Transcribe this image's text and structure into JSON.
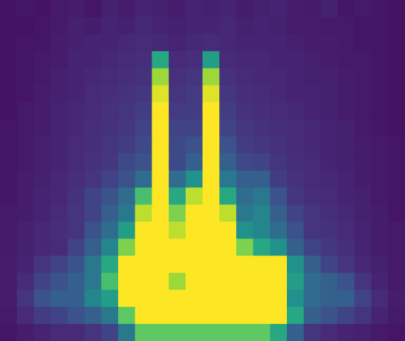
{
  "chart_data": {
    "type": "heatmap",
    "color": "viridis",
    "color_range": [
      0,
      1
    ],
    "tick_labels": false,
    "cells": [
      [
        0.05,
        0.06,
        0.05,
        0.07,
        0.08,
        0.06,
        0.09,
        0.08,
        0.1,
        0.09,
        0.08,
        0.1,
        0.09,
        0.1,
        0.08,
        0.09,
        0.1,
        0.08,
        0.07,
        0.09,
        0.06,
        0.07,
        0.06,
        0.05
      ],
      [
        0.05,
        0.05,
        0.06,
        0.07,
        0.09,
        0.08,
        0.1,
        0.09,
        0.11,
        0.1,
        0.09,
        0.1,
        0.1,
        0.11,
        0.09,
        0.1,
        0.09,
        0.08,
        0.08,
        0.07,
        0.07,
        0.06,
        0.06,
        0.05
      ],
      [
        0.05,
        0.06,
        0.06,
        0.08,
        0.09,
        0.1,
        0.1,
        0.11,
        0.12,
        0.11,
        0.1,
        0.11,
        0.12,
        0.11,
        0.1,
        0.1,
        0.1,
        0.09,
        0.08,
        0.08,
        0.07,
        0.06,
        0.06,
        0.05
      ],
      [
        0.05,
        0.06,
        0.07,
        0.08,
        0.1,
        0.1,
        0.11,
        0.12,
        0.13,
        0.6,
        0.12,
        0.13,
        0.55,
        0.12,
        0.11,
        0.11,
        0.1,
        0.1,
        0.09,
        0.08,
        0.07,
        0.07,
        0.06,
        0.05
      ],
      [
        0.05,
        0.06,
        0.07,
        0.09,
        0.1,
        0.11,
        0.12,
        0.13,
        0.14,
        0.85,
        0.14,
        0.15,
        0.85,
        0.14,
        0.12,
        0.11,
        0.11,
        0.1,
        0.09,
        0.09,
        0.08,
        0.07,
        0.06,
        0.05
      ],
      [
        0.05,
        0.06,
        0.08,
        0.09,
        0.1,
        0.12,
        0.13,
        0.14,
        0.16,
        0.95,
        0.15,
        0.17,
        0.95,
        0.16,
        0.13,
        0.12,
        0.11,
        0.1,
        0.1,
        0.09,
        0.08,
        0.07,
        0.06,
        0.05
      ],
      [
        0.05,
        0.07,
        0.08,
        0.1,
        0.11,
        0.12,
        0.14,
        0.15,
        0.18,
        1,
        0.17,
        0.18,
        1,
        0.18,
        0.14,
        0.13,
        0.12,
        0.11,
        0.1,
        0.09,
        0.08,
        0.07,
        0.06,
        0.05
      ],
      [
        0.06,
        0.07,
        0.08,
        0.1,
        0.11,
        0.13,
        0.14,
        0.16,
        0.2,
        1,
        0.2,
        0.2,
        1,
        0.2,
        0.16,
        0.14,
        0.13,
        0.12,
        0.11,
        0.1,
        0.09,
        0.07,
        0.06,
        0.05
      ],
      [
        0.06,
        0.07,
        0.09,
        0.1,
        0.12,
        0.13,
        0.15,
        0.18,
        0.22,
        1,
        0.22,
        0.25,
        1,
        0.25,
        0.18,
        0.16,
        0.14,
        0.12,
        0.11,
        0.1,
        0.09,
        0.08,
        0.07,
        0.06
      ],
      [
        0.06,
        0.07,
        0.09,
        0.1,
        0.12,
        0.14,
        0.16,
        0.22,
        0.25,
        1,
        0.22,
        0.3,
        1,
        0.3,
        0.22,
        0.2,
        0.15,
        0.13,
        0.12,
        0.1,
        0.09,
        0.08,
        0.07,
        0.06
      ],
      [
        0.06,
        0.08,
        0.09,
        0.11,
        0.13,
        0.15,
        0.2,
        0.25,
        0.35,
        1,
        0.35,
        0.5,
        1,
        0.4,
        0.3,
        0.3,
        0.18,
        0.14,
        0.12,
        0.11,
        0.1,
        0.08,
        0.07,
        0.06
      ],
      [
        0.06,
        0.08,
        0.1,
        0.11,
        0.14,
        0.2,
        0.25,
        0.35,
        0.7,
        1,
        0.6,
        0.9,
        1,
        0.6,
        0.35,
        0.4,
        0.25,
        0.16,
        0.13,
        0.12,
        0.1,
        0.09,
        0.07,
        0.06
      ],
      [
        0.07,
        0.08,
        0.1,
        0.12,
        0.15,
        0.2,
        0.3,
        0.4,
        0.9,
        1,
        0.8,
        1,
        1,
        0.9,
        0.4,
        0.45,
        0.3,
        0.2,
        0.15,
        0.13,
        0.11,
        0.09,
        0.08,
        0.06
      ],
      [
        0.07,
        0.09,
        0.11,
        0.13,
        0.15,
        0.25,
        0.35,
        0.55,
        1,
        1,
        0.9,
        1,
        1,
        1,
        0.5,
        0.45,
        0.35,
        0.25,
        0.15,
        0.14,
        0.12,
        0.1,
        0.08,
        0.07
      ],
      [
        0.07,
        0.09,
        0.11,
        0.12,
        0.2,
        0.3,
        0.45,
        0.8,
        1,
        1,
        1,
        1,
        1,
        1,
        0.8,
        0.6,
        0.5,
        0.3,
        0.2,
        0.16,
        0.13,
        0.1,
        0.08,
        0.07
      ],
      [
        0.08,
        0.1,
        0.15,
        0.2,
        0.25,
        0.4,
        0.6,
        1,
        1,
        1,
        1,
        1,
        1,
        1,
        1,
        1,
        1,
        0.5,
        0.3,
        0.2,
        0.15,
        0.11,
        0.09,
        0.07
      ],
      [
        0.08,
        0.12,
        0.2,
        0.25,
        0.3,
        0.4,
        0.7,
        1,
        1,
        1,
        0.85,
        1,
        1,
        1,
        1,
        1,
        1,
        0.55,
        0.35,
        0.3,
        0.25,
        0.15,
        0.1,
        0.07
      ],
      [
        0.08,
        0.15,
        0.25,
        0.3,
        0.3,
        0.45,
        0.55,
        1,
        1,
        1,
        1,
        1,
        1,
        1,
        1,
        1,
        1,
        0.5,
        0.35,
        0.3,
        0.3,
        0.2,
        0.12,
        0.08
      ],
      [
        0.07,
        0.12,
        0.18,
        0.2,
        0.25,
        0.3,
        0.4,
        0.75,
        1,
        1,
        1,
        1,
        1,
        1,
        1,
        1,
        1,
        0.6,
        0.3,
        0.25,
        0.2,
        0.15,
        0.1,
        0.07
      ],
      [
        0.06,
        0.08,
        0.1,
        0.12,
        0.12,
        0.15,
        0.2,
        0.4,
        0.75,
        0.75,
        0.75,
        0.75,
        0.75,
        0.75,
        0.75,
        0.75,
        0.6,
        0.3,
        0.15,
        0.12,
        0.1,
        0.09,
        0.07,
        0.06
      ]
    ]
  }
}
